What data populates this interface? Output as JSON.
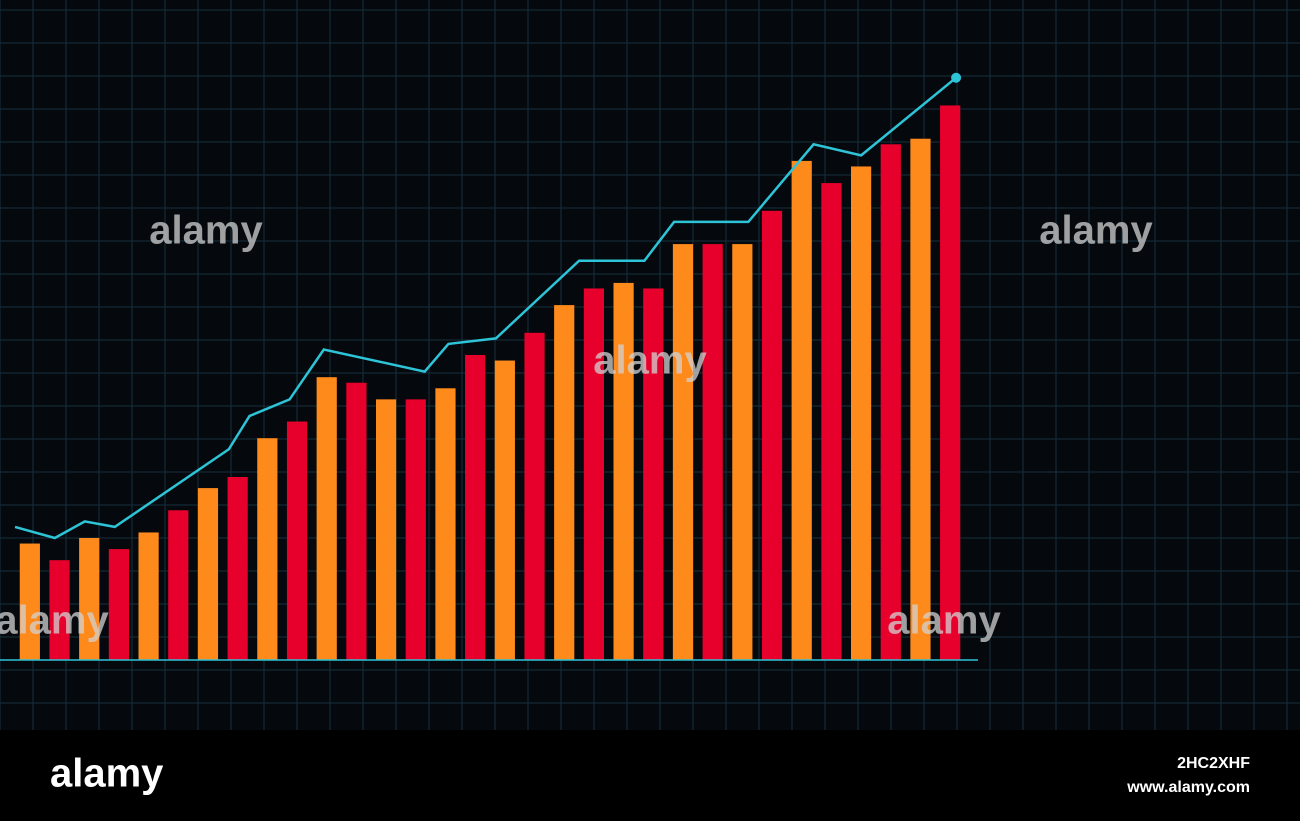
{
  "chart_data": {
    "type": "bar",
    "categories": [
      null,
      null,
      null,
      null,
      null,
      null,
      null,
      null,
      null,
      null,
      null,
      null,
      null,
      null,
      null,
      null,
      null,
      null,
      null,
      null,
      null,
      null,
      null,
      null,
      null,
      null,
      null,
      null,
      null,
      null,
      null,
      null
    ],
    "values": [
      21,
      18,
      22,
      20,
      23,
      27,
      31,
      33,
      40,
      43,
      51,
      50,
      47,
      47,
      49,
      55,
      54,
      59,
      64,
      67,
      68,
      67,
      75,
      75,
      75,
      81,
      90,
      86,
      89,
      93,
      94,
      100
    ],
    "colors": [
      "#ff8a1c",
      "#e8002c"
    ],
    "line": {
      "x": [
        -0.5,
        0.84,
        1.85,
        2.86,
        6.7,
        7.4,
        8.75,
        9.9,
        13.3,
        14.1,
        15.7,
        18.5,
        20.7,
        21.7,
        24.2,
        26.4,
        28,
        31.2
      ],
      "values": [
        24,
        22,
        25,
        24,
        38,
        44,
        47,
        56,
        52,
        57,
        58,
        72,
        72,
        79,
        79,
        93,
        91,
        105
      ],
      "color": "#2ec4d8"
    },
    "xlim": [
      -0.5,
      31.5
    ],
    "ylim": [
      0,
      110
    ],
    "grid": true
  },
  "watermark": "alamy",
  "footer": {
    "brand": "alamy",
    "image_id": "2HC2XHF",
    "url": "www.alamy.com"
  }
}
